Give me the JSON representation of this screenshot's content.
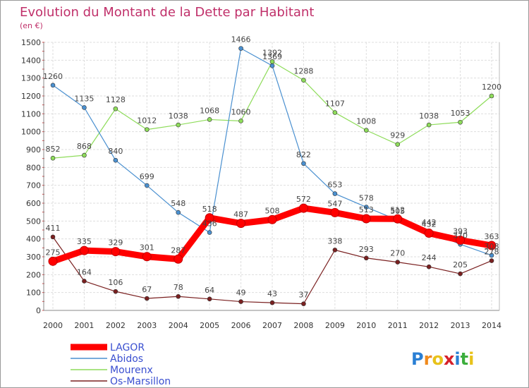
{
  "chart_data": {
    "type": "line",
    "title": "Evolution du Montant de la Dette par Habitant",
    "subtitle": "(en €)",
    "x": [
      "2000",
      "2001",
      "2002",
      "2003",
      "2004",
      "2005",
      "2006",
      "2007",
      "2008",
      "2009",
      "2010",
      "2011",
      "2012",
      "2013",
      "2014"
    ],
    "ylim": [
      0,
      1500
    ],
    "yticks": [
      0,
      100,
      200,
      300,
      400,
      500,
      600,
      700,
      800,
      900,
      1000,
      1100,
      1200,
      1300,
      1400,
      1500
    ],
    "grid": true,
    "legend_position": "bottom-left",
    "series": [
      {
        "name": "LAGOR",
        "color": "#ff0000",
        "values": [
          275,
          335,
          329,
          301,
          287,
          518,
          487,
          508,
          572,
          547,
          513,
          512,
          432,
          393,
          363
        ]
      },
      {
        "name": "Abidos",
        "color": "#4a90d0",
        "values": [
          1260,
          1135,
          840,
          699,
          548,
          436,
          1466,
          1369,
          822,
          653,
          578,
          505,
          442,
          370,
          308
        ]
      },
      {
        "name": "Mourenx",
        "color": "#8edc5a",
        "values": [
          852,
          868,
          1128,
          1012,
          1038,
          1068,
          1060,
          1392,
          1288,
          1107,
          1008,
          929,
          1038,
          1053,
          1200
        ]
      },
      {
        "name": "Os-Marsillon",
        "color": "#7a2020",
        "values": [
          411,
          164,
          106,
          67,
          78,
          64,
          49,
          43,
          37,
          338,
          293,
          270,
          244,
          205,
          278
        ]
      }
    ]
  },
  "logo": {
    "text": "Proxiti",
    "letters": [
      "P",
      "r",
      "o",
      "x",
      "i",
      "t",
      "i"
    ]
  }
}
